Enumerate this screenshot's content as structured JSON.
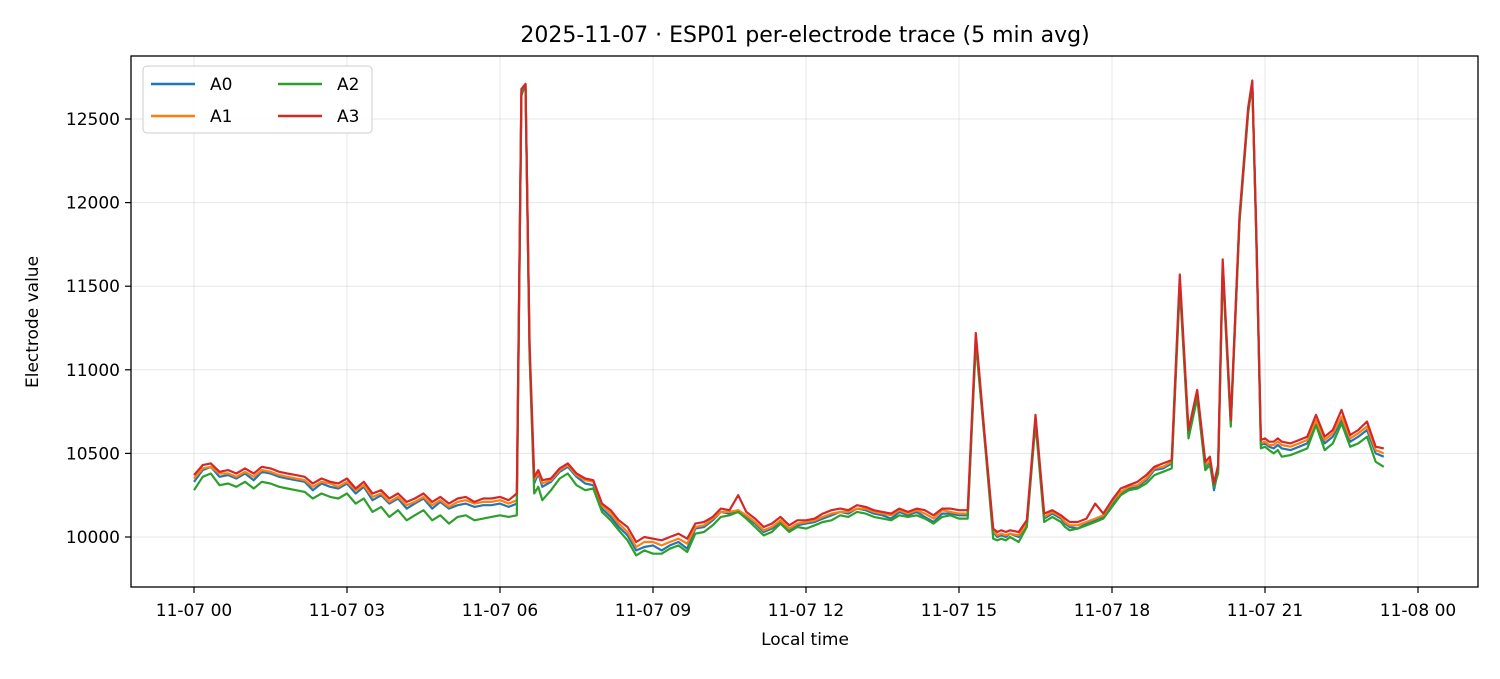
{
  "chart_data": {
    "type": "line",
    "title": "2025-11-07 · ESP01 per-electrode trace (5 min avg)",
    "xlabel": "Local time",
    "ylabel": "Electrode value",
    "x_unit": "hours since 2025-11-07 00:00",
    "xlim": [
      -1.2,
      24.6
    ],
    "ylim": [
      9700,
      12810
    ],
    "x_ticks": [
      {
        "value": 0,
        "label": "11-07 00"
      },
      {
        "value": 3,
        "label": "11-07 03"
      },
      {
        "value": 6,
        "label": "11-07 06"
      },
      {
        "value": 9,
        "label": "11-07 09"
      },
      {
        "value": 12,
        "label": "11-07 12"
      },
      {
        "value": 15,
        "label": "11-07 15"
      },
      {
        "value": 18,
        "label": "11-07 18"
      },
      {
        "value": 21,
        "label": "11-07 21"
      },
      {
        "value": 24,
        "label": "11-08 00"
      }
    ],
    "y_ticks": [
      10000,
      10500,
      11000,
      11500,
      12000,
      12500
    ],
    "grid": true,
    "legend": {
      "position": "upper left",
      "columns": 2
    },
    "x": [
      0,
      0.17,
      0.33,
      0.5,
      0.67,
      0.83,
      1,
      1.17,
      1.33,
      1.5,
      1.67,
      1.83,
      2,
      2.17,
      2.33,
      2.5,
      2.67,
      2.83,
      3,
      3.17,
      3.33,
      3.5,
      3.67,
      3.83,
      4,
      4.17,
      4.33,
      4.5,
      4.67,
      4.83,
      5,
      5.17,
      5.33,
      5.5,
      5.67,
      5.83,
      6,
      6.17,
      6.33,
      6.42,
      6.5,
      6.58,
      6.67,
      6.75,
      6.83,
      7,
      7.17,
      7.33,
      7.5,
      7.67,
      7.83,
      8,
      8.17,
      8.33,
      8.5,
      8.67,
      8.83,
      9,
      9.17,
      9.33,
      9.5,
      9.67,
      9.83,
      10,
      10.17,
      10.33,
      10.5,
      10.67,
      10.83,
      11,
      11.17,
      11.33,
      11.5,
      11.67,
      11.83,
      12,
      12.17,
      12.33,
      12.5,
      12.67,
      12.83,
      13,
      13.17,
      13.33,
      13.5,
      13.67,
      13.83,
      14,
      14.17,
      14.33,
      14.5,
      14.67,
      14.83,
      15,
      15.17,
      15.33,
      15.5,
      15.67,
      15.75,
      15.83,
      15.92,
      16,
      16.17,
      16.33,
      16.5,
      16.67,
      16.83,
      17,
      17.08,
      17.17,
      17.33,
      17.5,
      17.67,
      17.83,
      18,
      18.17,
      18.33,
      18.5,
      18.67,
      18.83,
      19,
      19.17,
      19.33,
      19.5,
      19.67,
      19.83,
      19.92,
      20,
      20.08,
      20.17,
      20.33,
      20.5,
      20.67,
      20.75,
      20.83,
      20.92,
      21,
      21.08,
      21.17,
      21.25,
      21.33,
      21.5,
      21.67,
      21.83,
      22,
      22.17,
      22.33,
      22.5,
      22.67,
      22.83,
      23,
      23.17,
      23.33,
      23.5,
      23.67,
      23.83
    ],
    "series": [
      {
        "name": "A0",
        "color": "#1f77b4",
        "values": [
          10330,
          10400,
          10420,
          10360,
          10370,
          10350,
          10380,
          10340,
          10390,
          10380,
          10360,
          10350,
          10340,
          10330,
          10280,
          10320,
          10300,
          10290,
          10320,
          10260,
          10300,
          10220,
          10250,
          10200,
          10230,
          10170,
          10200,
          10230,
          10170,
          10210,
          10170,
          10190,
          10200,
          10180,
          10190,
          10190,
          10200,
          10180,
          10200,
          12650,
          12700,
          11100,
          10320,
          10380,
          10300,
          10330,
          10390,
          10420,
          10360,
          10320,
          10310,
          10170,
          10120,
          10060,
          10010,
          9920,
          9940,
          9950,
          9920,
          9950,
          9970,
          9930,
          10050,
          10060,
          10100,
          10150,
          10140,
          10160,
          10120,
          10080,
          10030,
          10050,
          10090,
          10040,
          10070,
          10080,
          10090,
          10110,
          10130,
          10150,
          10140,
          10170,
          10160,
          10140,
          10130,
          10110,
          10150,
          10130,
          10150,
          10120,
          10090,
          10140,
          10140,
          10130,
          10130,
          11180,
          10600,
          10030,
          10000,
          10010,
          10000,
          10020,
          10000,
          10080,
          10700,
          10110,
          10140,
          10110,
          10080,
          10060,
          10050,
          10080,
          10100,
          10120,
          10200,
          10260,
          10290,
          10300,
          10340,
          10400,
          10410,
          10440,
          11530,
          10620,
          10850,
          10420,
          10450,
          10280,
          10400,
          11620,
          10680,
          11900,
          12550,
          12710,
          11800,
          10550,
          10560,
          10540,
          10530,
          10550,
          10530,
          10520,
          10540,
          10560,
          10700,
          10560,
          10600,
          10700,
          10570,
          10600,
          10640,
          10500,
          10480
        ]
      },
      {
        "name": "A1",
        "color": "#ff7f0e",
        "values": [
          10350,
          10410,
          10420,
          10380,
          10380,
          10360,
          10390,
          10360,
          10400,
          10390,
          10370,
          10360,
          10350,
          10340,
          10300,
          10330,
          10320,
          10300,
          10330,
          10280,
          10310,
          10240,
          10260,
          10210,
          10240,
          10190,
          10210,
          10240,
          10190,
          10220,
          10180,
          10210,
          10220,
          10200,
          10210,
          10210,
          10220,
          10200,
          10220,
          12660,
          12700,
          11120,
          10340,
          10390,
          10320,
          10340,
          10400,
          10430,
          10370,
          10340,
          10330,
          10190,
          10140,
          10080,
          10030,
          9940,
          9970,
          9970,
          9950,
          9970,
          9990,
          9960,
          10060,
          10070,
          10110,
          10150,
          10150,
          10160,
          10130,
          10090,
          10040,
          10060,
          10100,
          10050,
          10080,
          10090,
          10100,
          10120,
          10140,
          10150,
          10150,
          10170,
          10170,
          10150,
          10140,
          10130,
          10160,
          10140,
          10160,
          10140,
          10110,
          10160,
          10150,
          10140,
          10140,
          11190,
          10610,
          10040,
          10010,
          10020,
          10010,
          10020,
          10010,
          10080,
          10700,
          10120,
          10150,
          10120,
          10090,
          10070,
          10070,
          10090,
          10110,
          10130,
          10210,
          10270,
          10300,
          10310,
          10350,
          10410,
          10420,
          10450,
          11540,
          10630,
          10860,
          10430,
          10460,
          10310,
          10410,
          11630,
          10690,
          11900,
          12560,
          12710,
          11800,
          10560,
          10570,
          10550,
          10550,
          10570,
          10550,
          10540,
          10560,
          10580,
          10700,
          10580,
          10620,
          10720,
          10590,
          10620,
          10660,
          10520,
          10500
        ]
      },
      {
        "name": "A2",
        "color": "#2ca02c",
        "values": [
          10280,
          10360,
          10380,
          10310,
          10320,
          10300,
          10330,
          10290,
          10330,
          10320,
          10300,
          10290,
          10280,
          10270,
          10230,
          10260,
          10240,
          10230,
          10260,
          10200,
          10230,
          10150,
          10180,
          10120,
          10160,
          10100,
          10130,
          10160,
          10100,
          10130,
          10080,
          10120,
          10130,
          10100,
          10110,
          10120,
          10130,
          10120,
          10130,
          12640,
          12710,
          11080,
          10260,
          10300,
          10220,
          10280,
          10350,
          10380,
          10310,
          10280,
          10290,
          10150,
          10100,
          10040,
          9980,
          9890,
          9920,
          9900,
          9900,
          9930,
          9950,
          9910,
          10020,
          10030,
          10070,
          10120,
          10130,
          10150,
          10110,
          10060,
          10010,
          10030,
          10080,
          10030,
          10060,
          10050,
          10070,
          10090,
          10100,
          10130,
          10120,
          10150,
          10140,
          10120,
          10110,
          10100,
          10130,
          10120,
          10130,
          10110,
          10080,
          10120,
          10130,
          10110,
          10110,
          11160,
          10590,
          9990,
          9980,
          9990,
          9980,
          10000,
          9970,
          10060,
          10680,
          10090,
          10120,
          10090,
          10060,
          10040,
          10050,
          10070,
          10090,
          10110,
          10180,
          10250,
          10280,
          10290,
          10320,
          10370,
          10390,
          10410,
          11500,
          10590,
          10830,
          10400,
          10430,
          10300,
          10380,
          11600,
          10660,
          11880,
          12540,
          12710,
          11790,
          10530,
          10540,
          10520,
          10500,
          10520,
          10480,
          10490,
          10510,
          10530,
          10670,
          10520,
          10560,
          10680,
          10540,
          10560,
          10600,
          10450,
          10420
        ]
      },
      {
        "name": "A3",
        "color": "#d62728",
        "values": [
          10370,
          10430,
          10440,
          10390,
          10400,
          10380,
          10410,
          10380,
          10420,
          10410,
          10390,
          10380,
          10370,
          10360,
          10320,
          10350,
          10330,
          10320,
          10350,
          10290,
          10330,
          10260,
          10280,
          10230,
          10260,
          10210,
          10230,
          10260,
          10210,
          10240,
          10200,
          10230,
          10240,
          10210,
          10230,
          10230,
          10240,
          10220,
          10260,
          12680,
          12710,
          11150,
          10360,
          10400,
          10340,
          10350,
          10410,
          10440,
          10380,
          10350,
          10340,
          10200,
          10160,
          10100,
          10060,
          9970,
          10000,
          9990,
          9980,
          10000,
          10020,
          9990,
          10080,
          10090,
          10120,
          10170,
          10160,
          10250,
          10150,
          10110,
          10060,
          10080,
          10120,
          10070,
          10100,
          10100,
          10110,
          10140,
          10160,
          10170,
          10160,
          10190,
          10180,
          10160,
          10150,
          10140,
          10170,
          10150,
          10170,
          10160,
          10130,
          10170,
          10170,
          10160,
          10160,
          11220,
          10620,
          10050,
          10030,
          10040,
          10030,
          10040,
          10030,
          10100,
          10730,
          10140,
          10160,
          10130,
          10110,
          10090,
          10090,
          10110,
          10200,
          10140,
          10220,
          10290,
          10310,
          10330,
          10370,
          10420,
          10440,
          10460,
          11570,
          10640,
          10880,
          10450,
          10480,
          10320,
          10430,
          11660,
          10700,
          11920,
          12570,
          12730,
          11830,
          10580,
          10590,
          10570,
          10570,
          10590,
          10570,
          10560,
          10580,
          10600,
          10730,
          10600,
          10640,
          10760,
          10610,
          10640,
          10690,
          10540,
          10530
        ]
      }
    ]
  },
  "legend": {
    "items": [
      {
        "label": "A0",
        "color": "#1f77b4"
      },
      {
        "label": "A1",
        "color": "#ff7f0e"
      },
      {
        "label": "A2",
        "color": "#2ca02c"
      },
      {
        "label": "A3",
        "color": "#d62728"
      }
    ]
  }
}
